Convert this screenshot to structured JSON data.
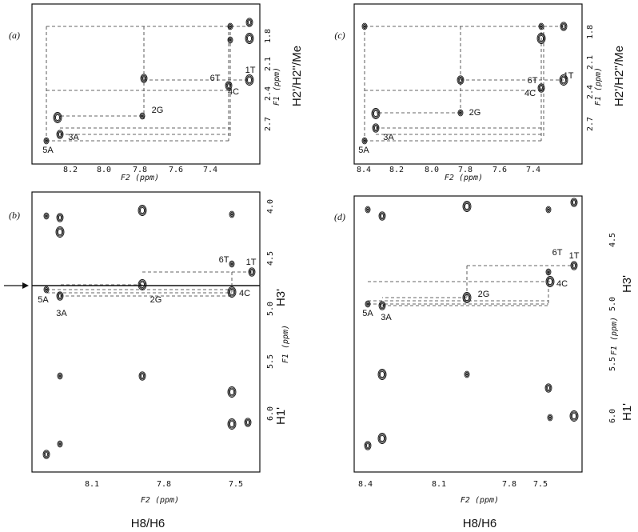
{
  "panels": [
    {
      "label": "(a)",
      "x_ticks": [
        "8.2",
        "8.0",
        "7.8",
        "7.6",
        "7.4"
      ],
      "y_ticks": [
        "1.8",
        "2.1",
        "2.4",
        "2.7"
      ],
      "x_axis_title": "F2 (ppm)",
      "y_axis_title": "F1 (ppm)",
      "side_labels": [
        "H2'/H2''/Me"
      ],
      "peak_labels": [
        "5A",
        "3A",
        "2G",
        "6T",
        "4C",
        "1T"
      ]
    },
    {
      "label": "(b)",
      "x_ticks": [
        "8.1",
        "7.8",
        "7.5"
      ],
      "y_ticks": [
        "4.0",
        "4.5",
        "5.0",
        "5.5",
        "6.0"
      ],
      "x_axis_title": "F2 (ppm)",
      "y_axis_title": "F1 (ppm)",
      "side_labels": [
        "H3'",
        "H1'"
      ],
      "peak_labels": [
        "5A",
        "3A",
        "2G",
        "6T",
        "1T",
        "4C"
      ],
      "bottom_label": "H8/H6"
    },
    {
      "label": "(c)",
      "x_ticks": [
        "8.4",
        "8.2",
        "8.0",
        "7.8",
        "7.6",
        "7.4"
      ],
      "y_ticks": [
        "1.8",
        "2.1",
        "2.4",
        "2.7"
      ],
      "x_axis_title": "F2 (ppm)",
      "y_axis_title": "F1 (ppm)",
      "side_labels": [
        "H2'/H2''/Me"
      ],
      "peak_labels": [
        "5A",
        "3A",
        "2G",
        "6T",
        "4C",
        "1T"
      ]
    },
    {
      "label": "(d)",
      "x_ticks": [
        "8.4",
        "8.1",
        "7.8",
        "7.5"
      ],
      "y_ticks": [
        "4.5",
        "5.0",
        "5.5",
        "6.0"
      ],
      "x_axis_title": "F2 (ppm)",
      "y_axis_title": "F1 (ppm)",
      "side_labels": [
        "H3'",
        "H1'"
      ],
      "peak_labels": [
        "5A",
        "3A",
        "2G",
        "6T",
        "1T",
        "4C"
      ],
      "bottom_label": "H8/H6"
    }
  ]
}
